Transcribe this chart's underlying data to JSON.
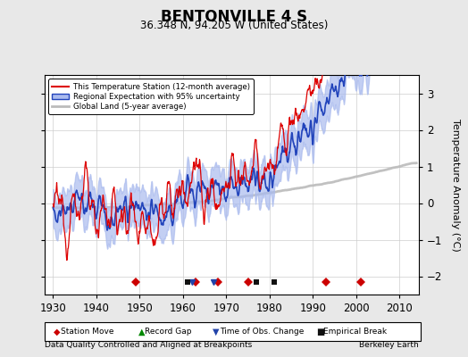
{
  "title": "BENTONVILLE 4 S",
  "subtitle": "36.348 N, 94.205 W (United States)",
  "xlabel_bottom": "Data Quality Controlled and Aligned at Breakpoints",
  "xlabel_right": "Berkeley Earth",
  "ylabel": "Temperature Anomaly (°C)",
  "xlim": [
    1928,
    2014.5
  ],
  "ylim": [
    -2.5,
    3.5
  ],
  "yticks": [
    -2,
    -1,
    0,
    1,
    2,
    3
  ],
  "xticks": [
    1930,
    1940,
    1950,
    1960,
    1970,
    1980,
    1990,
    2000,
    2010
  ],
  "bg_color": "#e8e8e8",
  "plot_bg_color": "#ffffff",
  "red_line_color": "#dd0000",
  "blue_fill_color": "#aabbee",
  "blue_line_color": "#2244bb",
  "gray_line_color": "#bbbbbb",
  "station_move_color": "#cc0000",
  "record_gap_color": "#008800",
  "obs_change_color": "#2244aa",
  "empirical_break_color": "#111111",
  "station_moves": [
    1949,
    1963,
    1968,
    1975,
    1993,
    2001
  ],
  "record_gaps": [],
  "obs_changes": [
    1962,
    1967
  ],
  "empirical_breaks": [
    1961,
    1977,
    1981
  ],
  "seed": 12345
}
